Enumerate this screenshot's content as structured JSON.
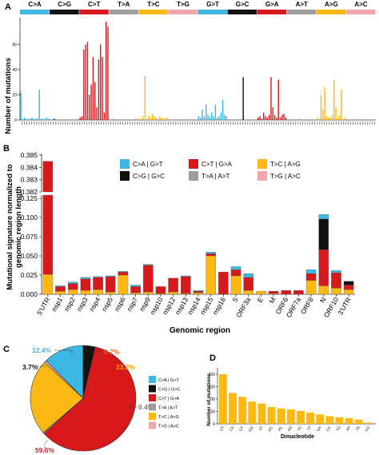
{
  "colors": {
    "CA": "#3db7e4",
    "CG": "#111111",
    "CT": "#d7191c",
    "TA": "#9e9e9e",
    "TC": "#fdb913",
    "TG": "#f4a6ad",
    "GT": "#3db7e4",
    "GC": "#111111",
    "GA": "#d7191c",
    "AT": "#9e9e9e",
    "AG": "#fdb913",
    "AC": "#f4a6ad",
    "dinuc_bar": "#fdb913"
  },
  "panels": {
    "a": "A",
    "b": "B",
    "c": "C",
    "d": "D"
  },
  "chart_data": [
    {
      "id": "A",
      "type": "bar",
      "ylabel": "Number of mutations",
      "ylim": [
        0,
        80
      ],
      "yticks": [
        0,
        20,
        40,
        60
      ],
      "mutation_classes": [
        {
          "label": "C>A",
          "key": "CA"
        },
        {
          "label": "C>G",
          "key": "CG"
        },
        {
          "label": "C>T",
          "key": "CT"
        },
        {
          "label": "T>A",
          "key": "TA"
        },
        {
          "label": "T>C",
          "key": "TC"
        },
        {
          "label": "T>G",
          "key": "TG"
        },
        {
          "label": "G>T",
          "key": "GT"
        },
        {
          "label": "G>C",
          "key": "GC"
        },
        {
          "label": "G>A",
          "key": "GA"
        },
        {
          "label": "A>T",
          "key": "AT"
        },
        {
          "label": "A>G",
          "key": "AG"
        },
        {
          "label": "A>C",
          "key": "AC"
        }
      ],
      "series": [
        {
          "key": "CA",
          "values": [
            22,
            1,
            2,
            1,
            1,
            1,
            2,
            1,
            1,
            1,
            24,
            1,
            1,
            1,
            2,
            1
          ]
        },
        {
          "key": "CG",
          "values": [
            0,
            0,
            1,
            0,
            0,
            0,
            0,
            0,
            0,
            0,
            0,
            0,
            0,
            0,
            0,
            0
          ]
        },
        {
          "key": "CT",
          "values": [
            2,
            3,
            56,
            60,
            62,
            20,
            28,
            50,
            30,
            10,
            48,
            60,
            50,
            6,
            78,
            74
          ]
        },
        {
          "key": "TA",
          "values": [
            0,
            0,
            1,
            0,
            0,
            0,
            0,
            0,
            0,
            0,
            0,
            0,
            0,
            0,
            1,
            0
          ]
        },
        {
          "key": "TC",
          "values": [
            1,
            1,
            3,
            35,
            1,
            4,
            2,
            5,
            3,
            2,
            1,
            3,
            2,
            1,
            1,
            2
          ]
        },
        {
          "key": "TG",
          "values": [
            0,
            0,
            0,
            0,
            1,
            0,
            0,
            0,
            0,
            0,
            0,
            0,
            1,
            0,
            0,
            0
          ]
        },
        {
          "key": "GT",
          "values": [
            3,
            2,
            8,
            3,
            12,
            4,
            2,
            6,
            3,
            12,
            2,
            3,
            6,
            16,
            4,
            3
          ]
        },
        {
          "key": "GC",
          "values": [
            0,
            0,
            0,
            0,
            0,
            0,
            0,
            0,
            34,
            0,
            0,
            0,
            0,
            0,
            0,
            0
          ]
        },
        {
          "key": "GA",
          "values": [
            2,
            3,
            1,
            6,
            3,
            2,
            4,
            34,
            10,
            4,
            2,
            32,
            2,
            4,
            5,
            2
          ]
        },
        {
          "key": "AT",
          "values": [
            0,
            0,
            0,
            0,
            0,
            0,
            1,
            0,
            0,
            0,
            0,
            0,
            0,
            0,
            0,
            0
          ]
        },
        {
          "key": "AG",
          "values": [
            2,
            1,
            20,
            8,
            26,
            3,
            2,
            2,
            4,
            32,
            10,
            2,
            4,
            24,
            1,
            2
          ]
        },
        {
          "key": "AC",
          "values": [
            0,
            0,
            0,
            1,
            0,
            0,
            0,
            0,
            0,
            0,
            0,
            0,
            0,
            0,
            0,
            0
          ]
        }
      ]
    },
    {
      "id": "B",
      "type": "bar",
      "stacked": true,
      "xlabel": "Genomic region",
      "ylabel": "Mutational signature normalized to genomic region length",
      "ylabel_lines": [
        "Mutational signature normalized to",
        "genomic region length"
      ],
      "ylim_lower": [
        0,
        0.125
      ],
      "ylim_upper": [
        0.382,
        0.385
      ],
      "yticks_lower": [
        "0.000",
        "0.025",
        "0.050",
        "0.075",
        "0.100",
        "0.125"
      ],
      "yticks_upper": [
        "0.382",
        "0.383",
        "0.384",
        "0.385"
      ],
      "legend": [
        {
          "label": "C>A | G>T",
          "key": "CA"
        },
        {
          "label": "C>T | G>A",
          "key": "CT"
        },
        {
          "label": "T>C | A>G",
          "key": "TC"
        },
        {
          "label": "C>G | G>C",
          "key": "CG"
        },
        {
          "label": "T>A | A>T",
          "key": "TA"
        },
        {
          "label": "T>G | A>C",
          "key": "TG"
        }
      ],
      "stack_order": [
        "TC",
        "CT",
        "CG",
        "CA"
      ],
      "categories": [
        "5'UTR",
        "nsp1",
        "nsp2",
        "nsp3",
        "nsp4",
        "nsp5",
        "nsp6",
        "nsp7",
        "nsp9",
        "nsp10",
        "nsp12",
        "nsp13",
        "nsp14",
        "nsp15",
        "nsp16",
        "S",
        "ORF3a",
        "E",
        "M",
        "ORF6",
        "ORF7a",
        "ORF8",
        "N",
        "ORF10",
        "3'UTR"
      ],
      "stacks": [
        {
          "TC": 0.026,
          "CT": 0.358,
          "CG": 0,
          "CA": 0.001,
          "total": 0.3845
        },
        {
          "TC": 0.004,
          "CT": 0.006,
          "CG": 0,
          "CA": 0.001
        },
        {
          "TC": 0.006,
          "CT": 0.008,
          "CG": 0,
          "CA": 0.002
        },
        {
          "TC": 0.005,
          "CT": 0.015,
          "CG": 0,
          "CA": 0.002
        },
        {
          "TC": 0.006,
          "CT": 0.016,
          "CG": 0,
          "CA": 0.001
        },
        {
          "TC": 0.003,
          "CT": 0.02,
          "CG": 0,
          "CA": 0.001
        },
        {
          "TC": 0.025,
          "CT": 0.004,
          "CG": 0,
          "CA": 0.001
        },
        {
          "TC": 0.002,
          "CT": 0.008,
          "CG": 0,
          "CA": 0.002
        },
        {
          "TC": 0.003,
          "CT": 0.035,
          "CG": 0,
          "CA": 0.001
        },
        {
          "TC": 0.001,
          "CT": 0.009,
          "CG": 0,
          "CA": 0.0
        },
        {
          "TC": 0.003,
          "CT": 0.018,
          "CG": 0,
          "CA": 0.0
        },
        {
          "TC": 0.001,
          "CT": 0.022,
          "CG": 0,
          "CA": 0.001
        },
        {
          "TC": 0.002,
          "CT": 0.002,
          "CG": 0,
          "CA": 0.001
        },
        {
          "TC": 0.05,
          "CT": 0.003,
          "CG": 0,
          "CA": 0.002
        },
        {
          "TC": 0.0,
          "CT": 0.029,
          "CG": 0,
          "CA": 0.0
        },
        {
          "TC": 0.024,
          "CT": 0.008,
          "CG": 0,
          "CA": 0.004
        },
        {
          "TC": 0.005,
          "CT": 0.017,
          "CG": 0,
          "CA": 0.005
        },
        {
          "TC": 0.004,
          "CT": 0.0,
          "CG": 0,
          "CA": 0.0
        },
        {
          "TC": 0.001,
          "CT": 0.003,
          "CG": 0,
          "CA": 0.0
        },
        {
          "TC": 0.0,
          "CT": 0.005,
          "CG": 0,
          "CA": 0.0
        },
        {
          "TC": 0.0,
          "CT": 0.005,
          "CG": 0,
          "CA": 0.0
        },
        {
          "TC": 0.018,
          "CT": 0.009,
          "CG": 0,
          "CA": 0.005
        },
        {
          "TC": 0.011,
          "CT": 0.047,
          "CG": 0.04,
          "CA": 0.006
        },
        {
          "TC": 0.008,
          "CT": 0.02,
          "CG": 0,
          "CA": 0.003
        },
        {
          "TC": 0.006,
          "CT": 0.006,
          "CG": 0.005,
          "CA": 0.0
        }
      ]
    },
    {
      "id": "C",
      "type": "pie",
      "slices": [
        {
          "label": "C>A | G>T",
          "key": "CA",
          "value": 12.4,
          "text": "12.4%"
        },
        {
          "label": "C>G | G>C",
          "key": "CG",
          "value": 3.7,
          "text": "3.7%"
        },
        {
          "label": "C>T | G>A",
          "key": "CT",
          "value": 59.6,
          "text": "59.6%"
        },
        {
          "label": "T>A | A>T",
          "key": "TA",
          "value": 0.4,
          "text": "0.4%"
        },
        {
          "label": "T>C | A>G",
          "key": "TC",
          "value": 23.2,
          "text": "23.2%"
        },
        {
          "label": "T>G | A>C",
          "key": "TG",
          "value": 0.7,
          "text": "0.7%"
        }
      ]
    },
    {
      "id": "D",
      "type": "bar",
      "xlabel": "Dinucleotide",
      "ylabel": "Number of mutations",
      "ylim": [
        0,
        220
      ],
      "yticks": [
        0,
        50,
        100,
        150,
        200
      ],
      "categories": [
        "CT",
        "CA",
        "GT",
        "GG",
        "AT",
        "GC",
        "AC",
        "AG",
        "TC",
        "TT",
        "GA",
        "CC",
        "TG",
        "AA",
        "TA",
        "CG"
      ],
      "values": [
        201,
        125,
        109,
        90,
        82,
        68,
        62,
        58,
        52,
        46,
        38,
        31,
        26,
        23,
        17,
        5
      ]
    }
  ]
}
